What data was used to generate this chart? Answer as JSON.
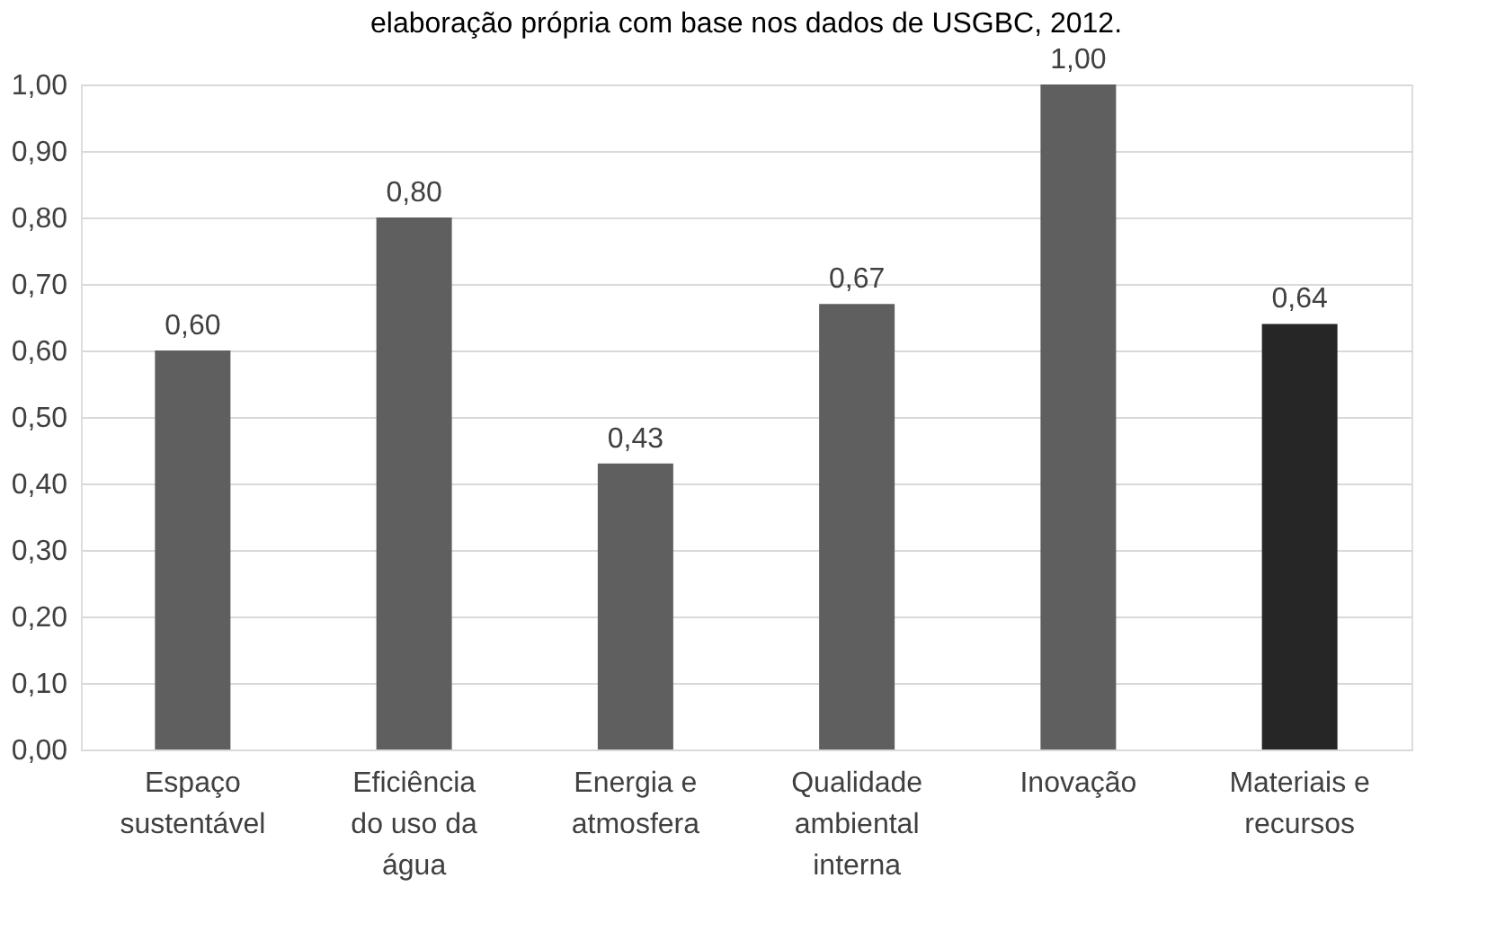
{
  "chart_data": {
    "type": "bar",
    "title": "elaboração própria com base nos dados de USGBC, 2012.",
    "categories": [
      "Espaço sustentável",
      "Eficiência do uso da água",
      "Energia e atmosfera",
      "Qualidade ambiental interna",
      "Inovação",
      "Materiais e recursos"
    ],
    "values": [
      0.6,
      0.8,
      0.43,
      0.67,
      1.0,
      0.64
    ],
    "value_labels": [
      "0,60",
      "0,80",
      "0,43",
      "0,67",
      "1,00",
      "0,64"
    ],
    "colors": [
      "#5f5f5f",
      "#5f5f5f",
      "#5f5f5f",
      "#5f5f5f",
      "#5f5f5f",
      "#262626"
    ],
    "ylim": [
      0,
      1
    ],
    "yticks": [
      {
        "value": 0,
        "label": "0,00"
      },
      {
        "value": 0.1,
        "label": "0,10"
      },
      {
        "value": 0.2,
        "label": "0,20"
      },
      {
        "value": 0.3,
        "label": "0,30"
      },
      {
        "value": 0.4,
        "label": "0,40"
      },
      {
        "value": 0.5,
        "label": "0,50"
      },
      {
        "value": 0.6,
        "label": "0,60"
      },
      {
        "value": 0.7,
        "label": "0,70"
      },
      {
        "value": 0.8,
        "label": "0,80"
      },
      {
        "value": 0.9,
        "label": "0,90"
      },
      {
        "value": 1.0,
        "label": "1,00"
      }
    ],
    "grid": "y"
  }
}
